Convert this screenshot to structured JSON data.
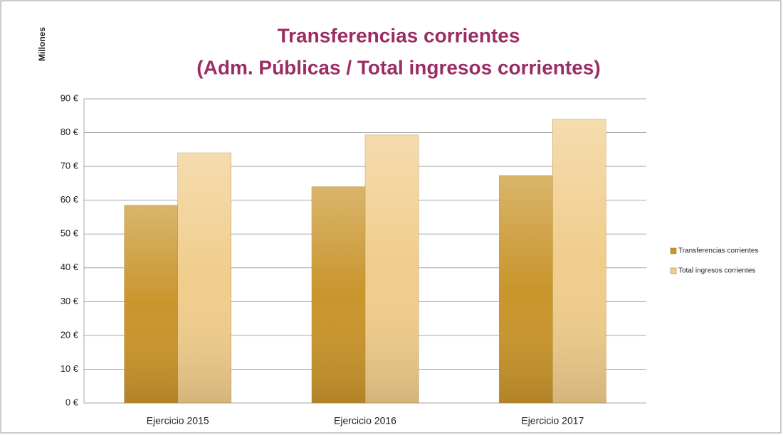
{
  "chart_data": {
    "type": "bar",
    "title": "Transferencias corrientes",
    "subtitle": "(Adm. Públicas / Total ingresos corrientes)",
    "y_label": "Millones",
    "categories": [
      "Ejercicio 2015",
      "Ejercicio 2016",
      "Ejercicio 2017"
    ],
    "series": [
      {
        "name": "Transferencias corrientes",
        "color": "#c9952c",
        "values": [
          58.5,
          64,
          67.3
        ]
      },
      {
        "name": "Total ingresos corrientes",
        "color": "#f0cd8c",
        "values": [
          74,
          79.3,
          84
        ]
      }
    ],
    "ylim": [
      0,
      90
    ],
    "yticks": [
      {
        "value": 0,
        "label": "0 €"
      },
      {
        "value": 10,
        "label": "10 €"
      },
      {
        "value": 20,
        "label": "20 €"
      },
      {
        "value": 30,
        "label": "30 €"
      },
      {
        "value": 40,
        "label": "40 €"
      },
      {
        "value": 50,
        "label": "50 €"
      },
      {
        "value": 60,
        "label": "60 €"
      },
      {
        "value": 70,
        "label": "70 €"
      },
      {
        "value": 80,
        "label": "80 €"
      },
      {
        "value": 90,
        "label": "90 €"
      }
    ],
    "grid": true,
    "legend": "right"
  }
}
